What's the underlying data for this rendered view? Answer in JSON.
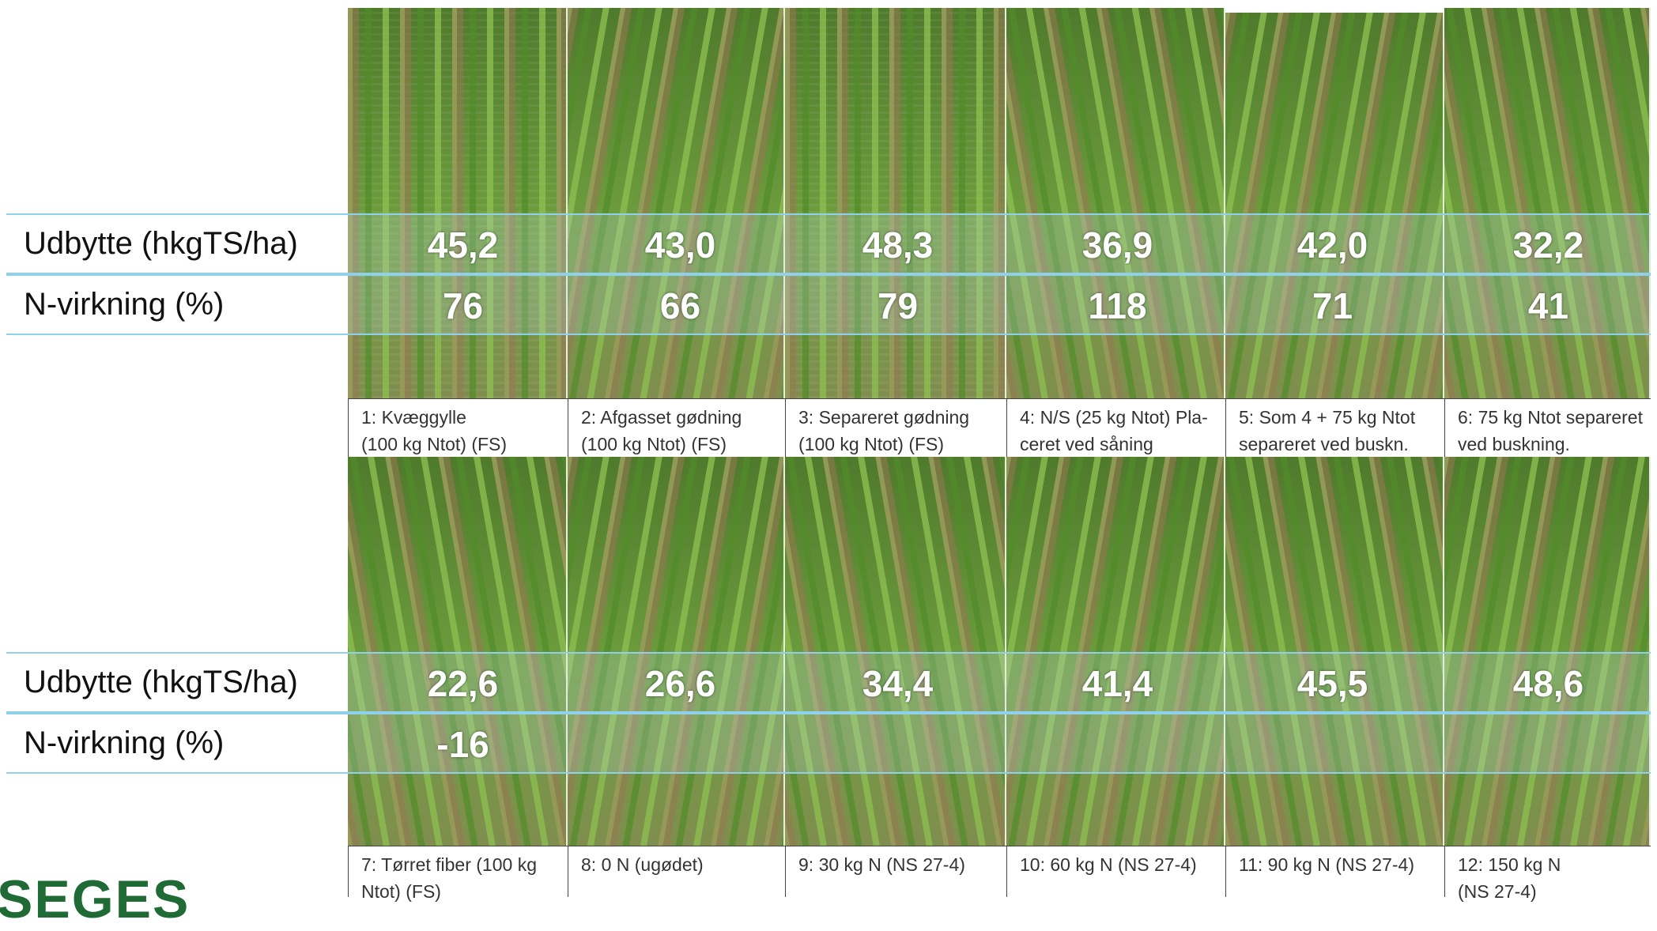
{
  "label_yield": "Udbytte (hkgTS/ha)",
  "label_nvirk": "N-virkning (%)",
  "top": {
    "yield": [
      "45,2",
      "43,0",
      "48,3",
      "36,9",
      "42,0",
      "32,2"
    ],
    "nvirk": [
      "76",
      "66",
      "79",
      "118",
      "71",
      "41"
    ],
    "captions": [
      [
        "1: Kvæggylle",
        "(100 kg Ntot) (FS)"
      ],
      [
        "2: Afgasset gødning",
        "(100 kg Ntot) (FS)"
      ],
      [
        "3: Separeret gødning",
        "(100 kg Ntot) (FS)"
      ],
      [
        "4: N/S (25 kg Ntot) Pla-",
        "ceret ved såning"
      ],
      [
        "5: Som 4 + 75 kg Ntot",
        "separeret ved buskn."
      ],
      [
        "6: 75 kg Ntot separeret",
        "ved buskning."
      ]
    ]
  },
  "bottom": {
    "yield": [
      "22,6",
      "26,6",
      "34,4",
      "41,4",
      "45,5",
      "48,6"
    ],
    "nvirk": [
      "-16",
      "",
      "",
      "",
      "",
      ""
    ],
    "captions": [
      [
        "7: Tørret fiber (100 kg",
        "Ntot) (FS)"
      ],
      [
        "8: 0 N (ugødet)",
        ""
      ],
      [
        "9: 30 kg N (NS 27-4)",
        ""
      ],
      [
        "10: 60 kg N (NS 27-4)",
        ""
      ],
      [
        "11: 90 kg N (NS 27-4)",
        ""
      ],
      [
        "12: 150 kg N",
        "(NS 27-4)"
      ]
    ]
  },
  "logo_text": "SEGES"
}
